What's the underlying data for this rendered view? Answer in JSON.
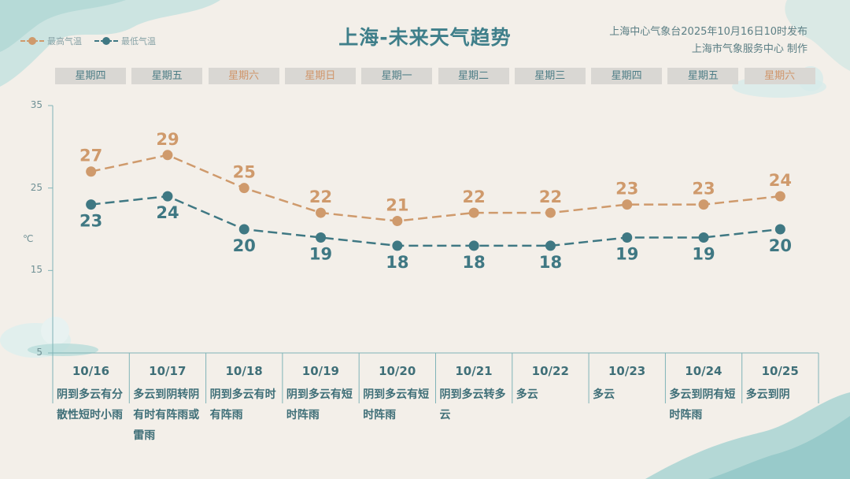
{
  "title": "上海-未来天气趋势",
  "publisher": {
    "line1": "上海中心气象台2025年10月16日10时发布",
    "line2": "上海市气象服务中心 制作"
  },
  "legend": {
    "high": "最高气温",
    "low": "最低气温"
  },
  "colors": {
    "high": "#cf9a6c",
    "low": "#3f7883",
    "weekday_text": "#4d7d86",
    "weekend_text": "#d0956a",
    "axis": "#7fb3b7"
  },
  "unit": "℃",
  "weekdays": [
    {
      "label": "星期四",
      "weekend": false
    },
    {
      "label": "星期五",
      "weekend": false
    },
    {
      "label": "星期六",
      "weekend": true
    },
    {
      "label": "星期日",
      "weekend": true
    },
    {
      "label": "星期一",
      "weekend": false
    },
    {
      "label": "星期二",
      "weekend": false
    },
    {
      "label": "星期三",
      "weekend": false
    },
    {
      "label": "星期四",
      "weekend": false
    },
    {
      "label": "星期五",
      "weekend": false
    },
    {
      "label": "星期六",
      "weekend": true
    }
  ],
  "days": [
    {
      "date": "10/16",
      "weather": "阴到多云有分散性短时小雨"
    },
    {
      "date": "10/17",
      "weather": "多云到阴转阴有时有阵雨或雷雨"
    },
    {
      "date": "10/18",
      "weather": "阴到多云有时有阵雨"
    },
    {
      "date": "10/19",
      "weather": "阴到多云有短时阵雨"
    },
    {
      "date": "10/20",
      "weather": "阴到多云有短时阵雨"
    },
    {
      "date": "10/21",
      "weather": "阴到多云转多云"
    },
    {
      "date": "10/22",
      "weather": "多云"
    },
    {
      "date": "10/23",
      "weather": "多云"
    },
    {
      "date": "10/24",
      "weather": "多云到阴有短时阵雨"
    },
    {
      "date": "10/25",
      "weather": "多云到阴"
    }
  ],
  "chart_data": {
    "type": "line",
    "categories": [
      "10/16",
      "10/17",
      "10/18",
      "10/19",
      "10/20",
      "10/21",
      "10/22",
      "10/23",
      "10/24",
      "10/25"
    ],
    "series": [
      {
        "name": "最高气温",
        "values": [
          27,
          29,
          25,
          22,
          21,
          22,
          22,
          23,
          23,
          24
        ]
      },
      {
        "name": "最低气温",
        "values": [
          23,
          24,
          20,
          19,
          18,
          18,
          18,
          19,
          19,
          20
        ]
      }
    ],
    "ylabel": "℃",
    "ylim": [
      5,
      35
    ],
    "yticks": [
      35,
      25,
      15,
      5
    ],
    "grid": false,
    "legend": "top-left"
  }
}
